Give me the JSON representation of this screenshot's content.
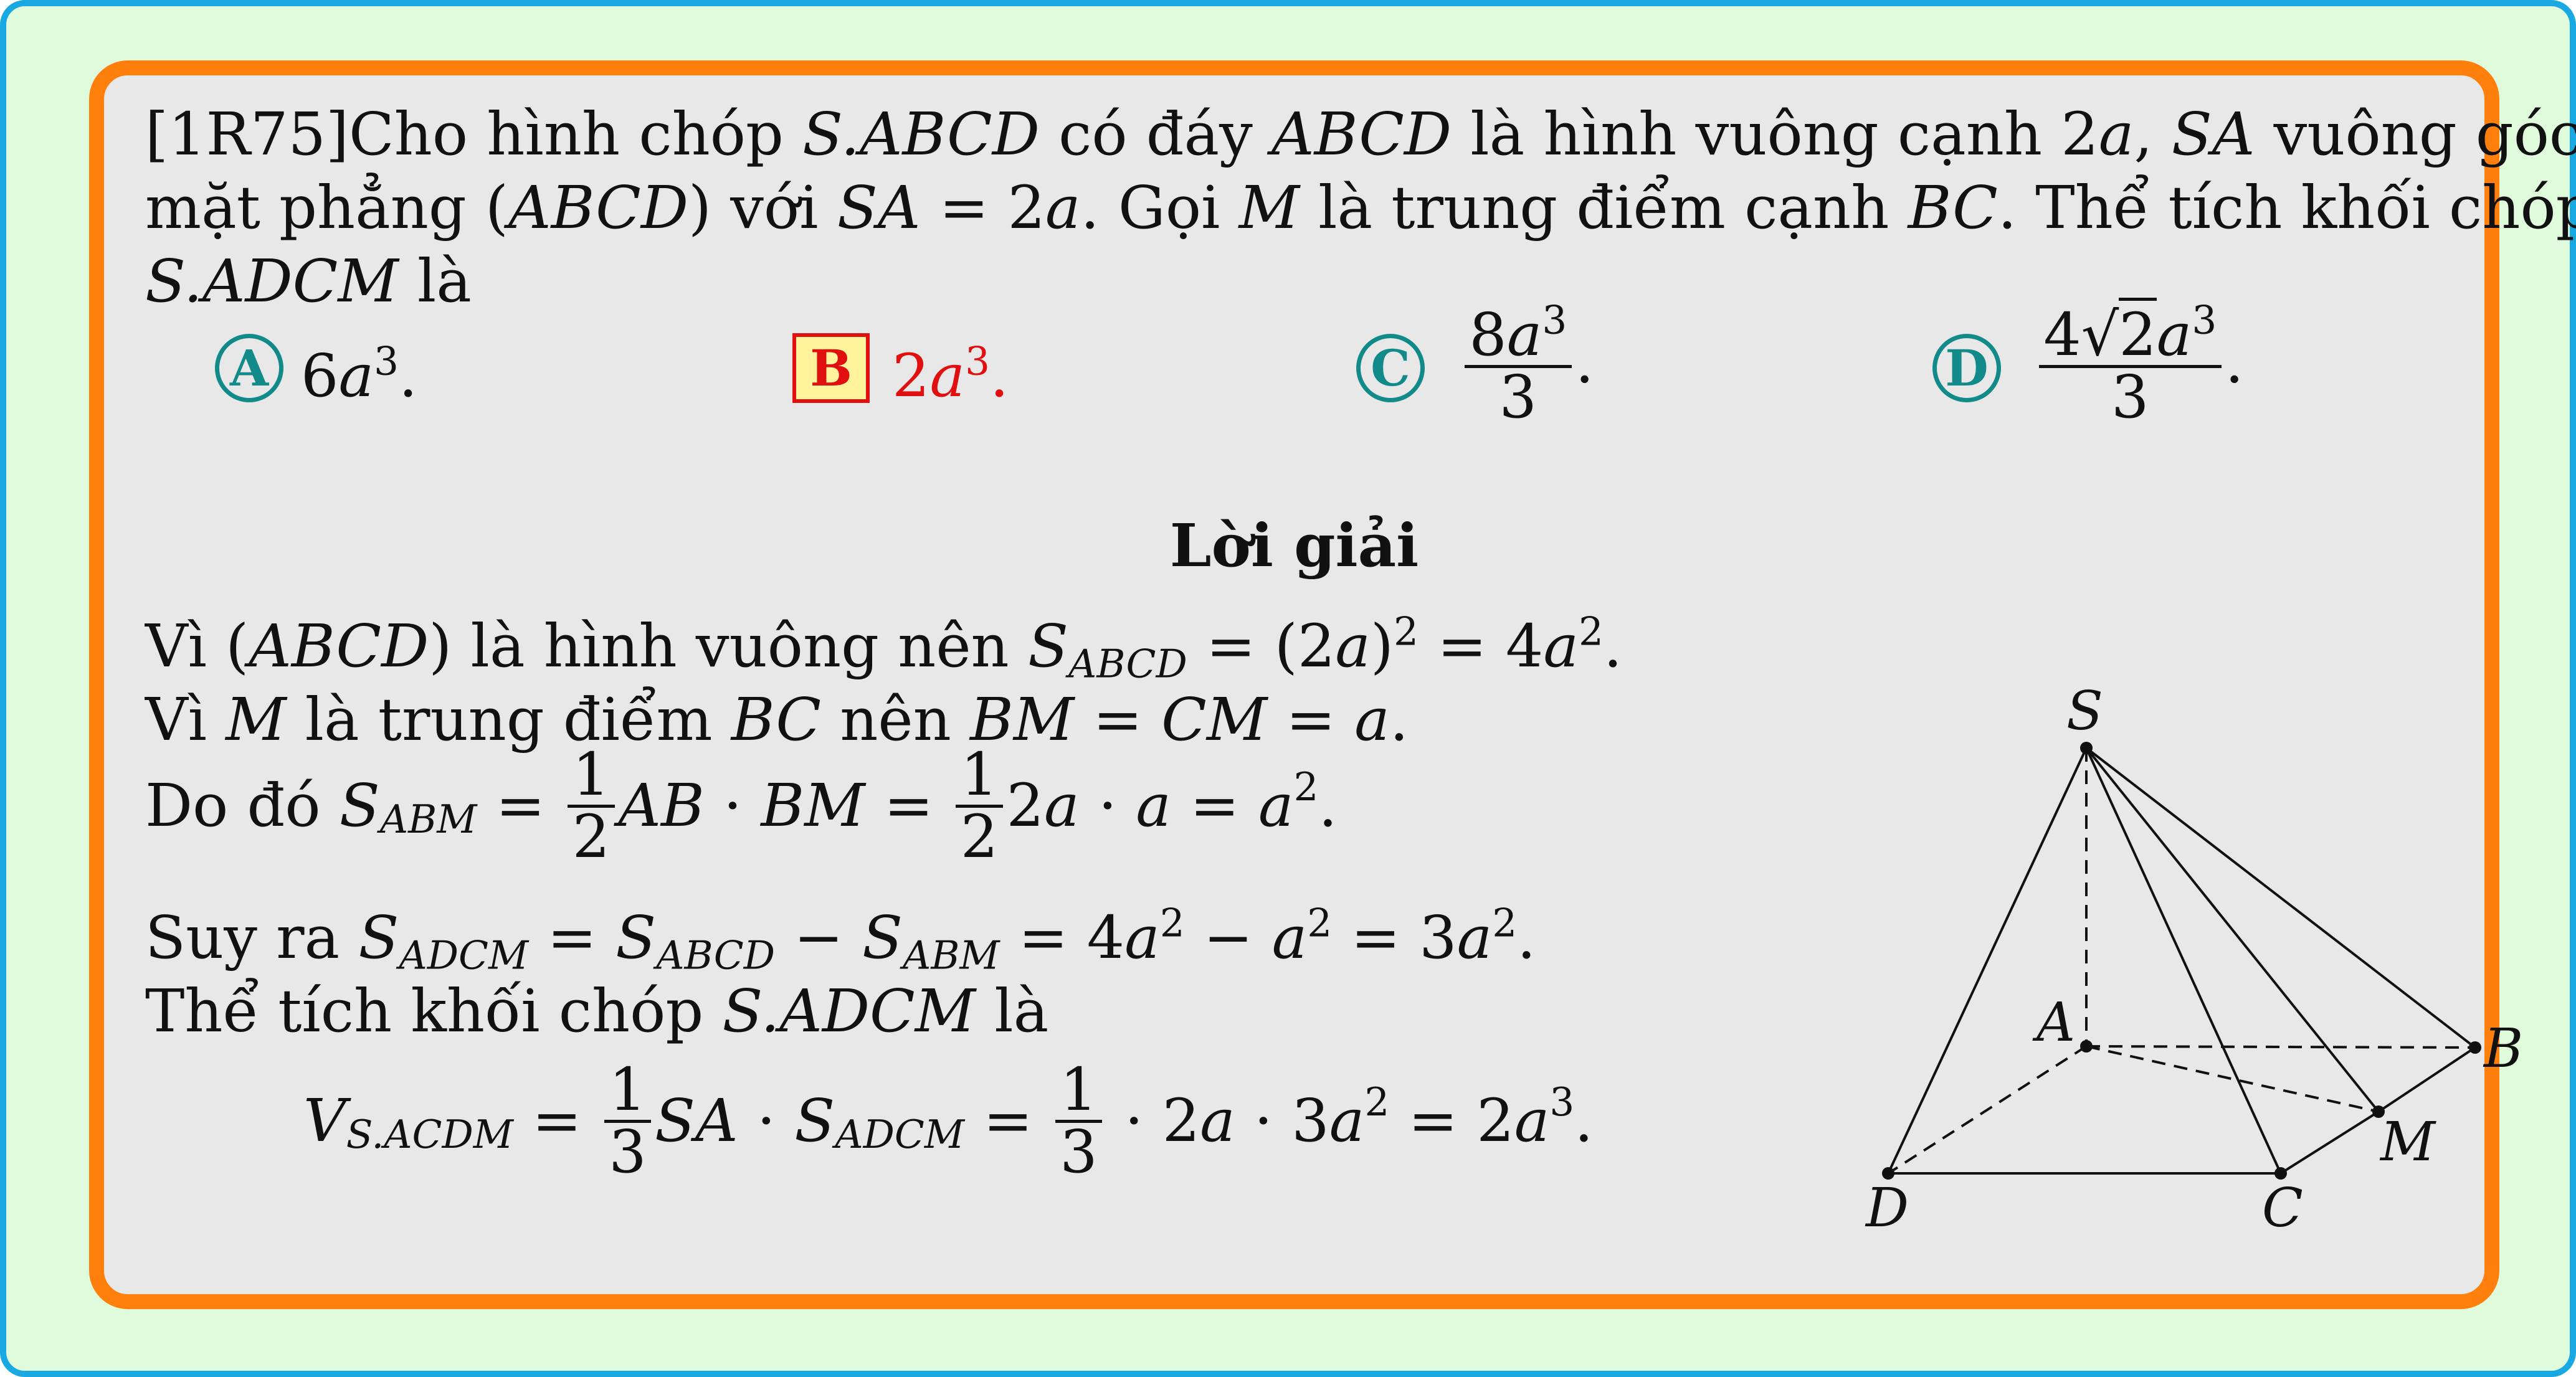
{
  "problem": {
    "id": "[1R75]",
    "line1_a": "Cho hình chóp ",
    "line1_b": "S.ABCD",
    "line1_c": " có đáy ",
    "line1_d": "ABCD",
    "line1_e": " là hình vuông cạnh 2",
    "line1_f": "a",
    "line1_g": ", ",
    "line1_h": "SA",
    "line1_i": " vuông góc với",
    "line2_a": "mặt phẳng (",
    "line2_b": "ABCD",
    "line2_c": ") với ",
    "line2_d": "SA",
    "line2_e": " = 2",
    "line2_f": "a",
    "line2_g": ". Gọi ",
    "line2_h": "M",
    "line2_i": " là trung điểm cạnh ",
    "line2_j": "BC",
    "line2_k": ". Thể tích khối chóp",
    "line3_a": "S.ADCM",
    "line3_b": " là"
  },
  "choices": [
    {
      "letter": "A",
      "pre": "6",
      "var": "a",
      "exp": "3",
      "post": ".",
      "correct": false
    },
    {
      "letter": "B",
      "pre": "2",
      "var": "a",
      "exp": "3",
      "post": ".",
      "correct": true
    },
    {
      "letter": "C",
      "num_pre": "8",
      "num_var": "a",
      "num_exp": "3",
      "den": "3",
      "post": ".",
      "correct": false
    },
    {
      "letter": "D",
      "num_pre": "4",
      "sqrt": "2",
      "num_var": "a",
      "num_exp": "3",
      "den": "3",
      "post": ".",
      "correct": false
    }
  ],
  "solution": {
    "heading": "Lời giải",
    "s1": {
      "a": "Vì (",
      "b": "ABCD",
      "c": ") là hình vuông nên ",
      "d": "S",
      "e": "ABCD",
      "f": " = (2",
      "g": "a",
      "h": ")",
      "i": "2",
      "j": " = 4",
      "k": "a",
      "l": "2",
      "m": "."
    },
    "s2": {
      "a": "Vì ",
      "b": "M",
      "c": " là trung điểm ",
      "d": "BC",
      "e": " nên ",
      "f": "BM",
      "g": " = ",
      "h": "CM",
      "i": " = ",
      "j": "a",
      "k": "."
    },
    "s3": {
      "a": "Do đó ",
      "b": "S",
      "c": "ABM",
      "d": " = ",
      "e": "1",
      "f": "2",
      "g": "AB",
      "h": " · ",
      "i": "BM",
      "j": " = ",
      "k": "1",
      "l": "2",
      "m": "2",
      "n": "a",
      "o": " · ",
      "p": "a",
      "q": " = ",
      "r": "a",
      "s": "2",
      "t": "."
    },
    "s4": {
      "a": "Suy ra ",
      "b": "S",
      "c": "ADCM",
      "d": " = ",
      "e": "S",
      "f": "ABCD",
      "g": " − ",
      "h": "S",
      "i": "ABM",
      "j": " = 4",
      "k": "a",
      "l": "2",
      "m": " − ",
      "n": "a",
      "o": "2",
      "p": " = 3",
      "q": "a",
      "r": "2",
      "s": "."
    },
    "s5": {
      "a": "Thể tích khối chóp ",
      "b": "S.ADCM",
      "c": " là"
    },
    "s6": {
      "a": "V",
      "b": "S.ACDM",
      "c": " = ",
      "d": "1",
      "e": "3",
      "f": "SA",
      "g": " · ",
      "h": "S",
      "i": "ADCM",
      "j": " = ",
      "k": "1",
      "l": "3",
      "m": " · 2",
      "n": "a",
      "o": " · 3",
      "p": "a",
      "q": "2",
      "r": " = 2",
      "s": "a",
      "t": "3",
      "u": "."
    }
  },
  "figure": {
    "labels": {
      "S": "S",
      "A": "A",
      "B": "B",
      "C": "C",
      "D": "D",
      "M": "M"
    }
  }
}
